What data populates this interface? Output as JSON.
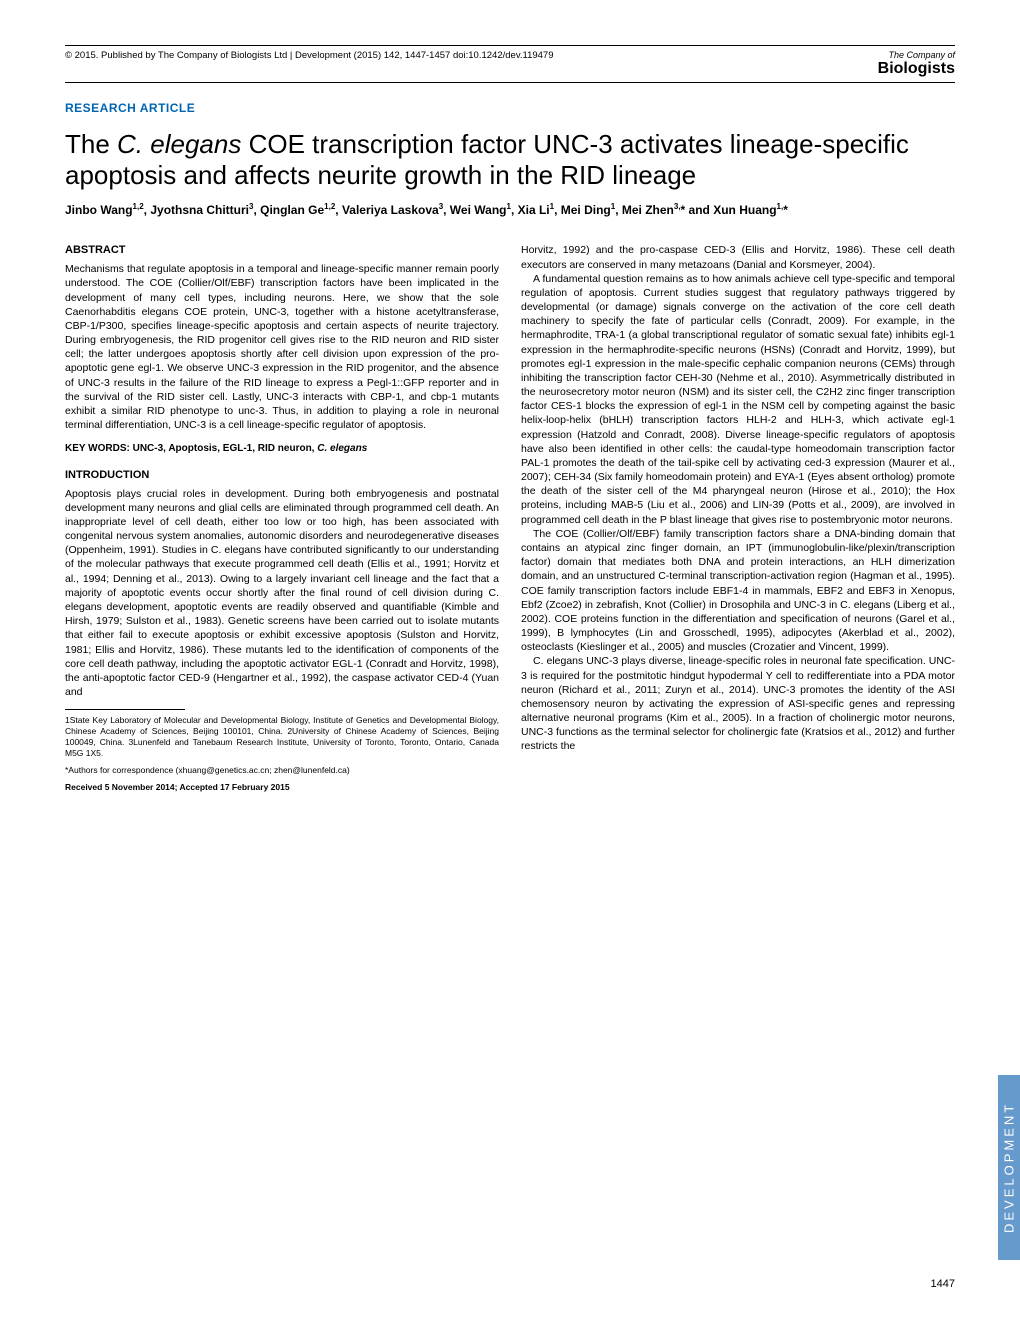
{
  "header": {
    "publisher": "© 2015. Published by The Company of Biologists Ltd | Development (2015) 142, 1447-1457 doi:10.1242/dev.119479",
    "logo_top": "The Company of",
    "logo_main": "Biologists"
  },
  "article_type": "RESEARCH ARTICLE",
  "title_pre": "The ",
  "title_italic": "C. elegans",
  "title_post": " COE transcription factor UNC-3 activates lineage-specific apoptosis and affects neurite growth in the RID lineage",
  "authors": "Jinbo Wang1,2, Jyothsna Chitturi3, Qinglan Ge1,2, Valeriya Laskova3, Wei Wang1, Xia Li1, Mei Ding1, Mei Zhen3,* and Xun Huang1,*",
  "abstract_title": "ABSTRACT",
  "abstract": "Mechanisms that regulate apoptosis in a temporal and lineage-specific manner remain poorly understood. The COE (Collier/Olf/EBF) transcription factors have been implicated in the development of many cell types, including neurons. Here, we show that the sole Caenorhabditis elegans COE protein, UNC-3, together with a histone acetyltransferase, CBP-1/P300, specifies lineage-specific apoptosis and certain aspects of neurite trajectory. During embryogenesis, the RID progenitor cell gives rise to the RID neuron and RID sister cell; the latter undergoes apoptosis shortly after cell division upon expression of the pro-apoptotic gene egl-1. We observe UNC-3 expression in the RID progenitor, and the absence of UNC-3 results in the failure of the RID lineage to express a Pegl-1::GFP reporter and in the survival of the RID sister cell. Lastly, UNC-3 interacts with CBP-1, and cbp-1 mutants exhibit a similar RID phenotype to unc-3. Thus, in addition to playing a role in neuronal terminal differentiation, UNC-3 is a cell lineage-specific regulator of apoptosis.",
  "keywords": "KEY WORDS: UNC-3, Apoptosis, EGL-1, RID neuron, C. elegans",
  "intro_title": "INTRODUCTION",
  "intro_p1": "Apoptosis plays crucial roles in development. During both embryogenesis and postnatal development many neurons and glial cells are eliminated through programmed cell death. An inappropriate level of cell death, either too low or too high, has been associated with congenital nervous system anomalies, autonomic disorders and neurodegenerative diseases (Oppenheim, 1991). Studies in C. elegans have contributed significantly to our understanding of the molecular pathways that execute programmed cell death (Ellis et al., 1991; Horvitz et al., 1994; Denning et al., 2013). Owing to a largely invariant cell lineage and the fact that a majority of apoptotic events occur shortly after the final round of cell division during C. elegans development, apoptotic events are readily observed and quantifiable (Kimble and Hirsh, 1979; Sulston et al., 1983). Genetic screens have been carried out to isolate mutants that either fail to execute apoptosis or exhibit excessive apoptosis (Sulston and Horvitz, 1981; Ellis and Horvitz, 1986). These mutants led to the identification of components of the core cell death pathway, including the apoptotic activator EGL-1 (Conradt and Horvitz, 1998), the anti-apoptotic factor CED-9 (Hengartner et al., 1992), the caspase activator CED-4 (Yuan and",
  "col2_p1": "Horvitz, 1992) and the pro-caspase CED-3 (Ellis and Horvitz, 1986). These cell death executors are conserved in many metazoans (Danial and Korsmeyer, 2004).",
  "col2_p2": "A fundamental question remains as to how animals achieve cell type-specific and temporal regulation of apoptosis. Current studies suggest that regulatory pathways triggered by developmental (or damage) signals converge on the activation of the core cell death machinery to specify the fate of particular cells (Conradt, 2009). For example, in the hermaphrodite, TRA-1 (a global transcriptional regulator of somatic sexual fate) inhibits egl-1 expression in the hermaphrodite-specific neurons (HSNs) (Conradt and Horvitz, 1999), but promotes egl-1 expression in the male-specific cephalic companion neurons (CEMs) through inhibiting the transcription factor CEH-30 (Nehme et al., 2010). Asymmetrically distributed in the neurosecretory motor neuron (NSM) and its sister cell, the C2H2 zinc finger transcription factor CES-1 blocks the expression of egl-1 in the NSM cell by competing against the basic helix-loop-helix (bHLH) transcription factors HLH-2 and HLH-3, which activate egl-1 expression (Hatzold and Conradt, 2008). Diverse lineage-specific regulators of apoptosis have also been identified in other cells: the caudal-type homeodomain transcription factor PAL-1 promotes the death of the tail-spike cell by activating ced-3 expression (Maurer et al., 2007); CEH-34 (Six family homeodomain protein) and EYA-1 (Eyes absent ortholog) promote the death of the sister cell of the M4 pharyngeal neuron (Hirose et al., 2010); the Hox proteins, including MAB-5 (Liu et al., 2006) and LIN-39 (Potts et al., 2009), are involved in programmed cell death in the P blast lineage that gives rise to postembryonic motor neurons.",
  "col2_p3": "The COE (Collier/Olf/EBF) family transcription factors share a DNA-binding domain that contains an atypical zinc finger domain, an IPT (immunoglobulin-like/plexin/transcription factor) domain that mediates both DNA and protein interactions, an HLH dimerization domain, and an unstructured C-terminal transcription-activation region (Hagman et al., 1995). COE family transcription factors include EBF1-4 in mammals, EBF2 and EBF3 in Xenopus, Ebf2 (Zcoe2) in zebrafish, Knot (Collier) in Drosophila and UNC-3 in C. elegans (Liberg et al., 2002). COE proteins function in the differentiation and specification of neurons (Garel et al., 1999), B lymphocytes (Lin and Grosschedl, 1995), adipocytes (Akerblad et al., 2002), osteoclasts (Kieslinger et al., 2005) and muscles (Crozatier and Vincent, 1999).",
  "col2_p4": "C. elegans UNC-3 plays diverse, lineage-specific roles in neuronal fate specification. UNC-3 is required for the postmitotic hindgut hypodermal Y cell to redifferentiate into a PDA motor neuron (Richard et al., 2011; Zuryn et al., 2014). UNC-3 promotes the identity of the ASI chemosensory neuron by activating the expression of ASI-specific genes and repressing alternative neuronal programs (Kim et al., 2005). In a fraction of cholinergic motor neurons, UNC-3 functions as the terminal selector for cholinergic fate (Kratsios et al., 2012) and further restricts the",
  "affiliations": "1State Key Laboratory of Molecular and Developmental Biology, Institute of Genetics and Developmental Biology, Chinese Academy of Sciences, Beijing 100101, China. 2University of Chinese Academy of Sciences, Beijing 100049, China. 3Lunenfeld and Tanebaum Research Institute, University of Toronto, Toronto, Ontario, Canada M5G 1X5.",
  "correspondence": "*Authors for correspondence (xhuang@genetics.ac.cn; zhen@lunenfeld.ca)",
  "received": "Received 5 November 2014; Accepted 17 February 2015",
  "side_tab": "DEVELOPMENT",
  "page_num": "1447",
  "colors": {
    "blue": "#0066b3",
    "tab_bg": "#6699cc"
  }
}
